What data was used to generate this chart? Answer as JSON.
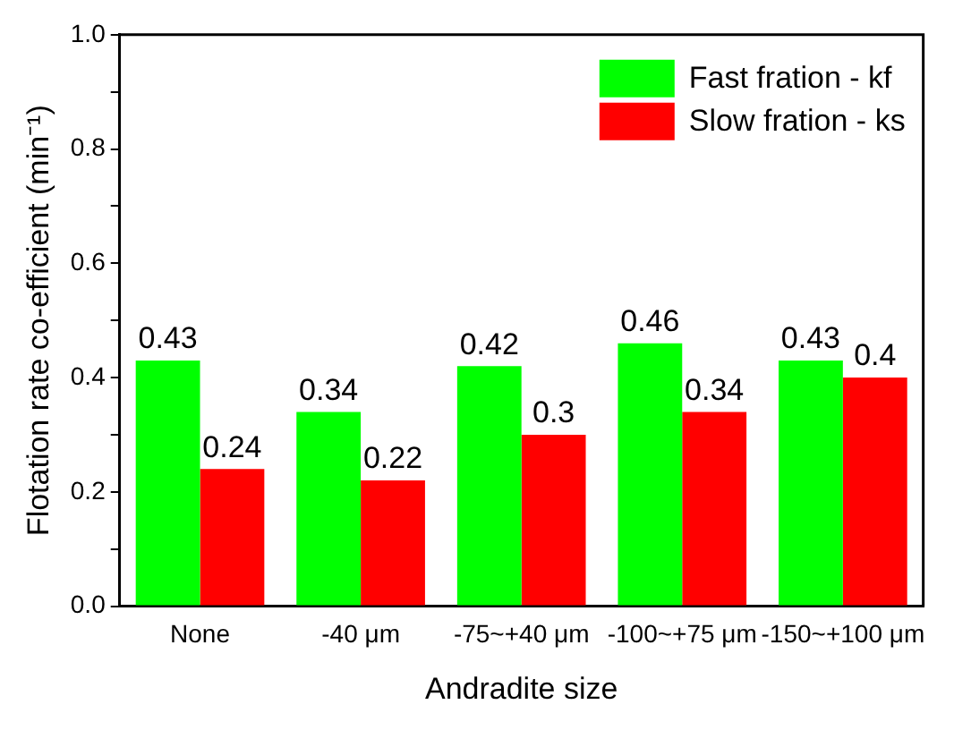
{
  "chart_data": {
    "type": "bar",
    "xlabel": "Andradite size",
    "ylabel": "Flotation rate co-efficient (min⁻¹)",
    "categories": [
      "None",
      "-40 μm",
      "-75~+40 μm",
      "-100~+75 μm",
      "-150~+100 μm"
    ],
    "series": [
      {
        "name": "Fast fration - kf",
        "color": "#00ff00",
        "values": [
          0.43,
          0.34,
          0.42,
          0.46,
          0.43
        ]
      },
      {
        "name": "Slow fration - ks",
        "color": "#ff0000",
        "values": [
          0.24,
          0.22,
          0.3,
          0.34,
          0.4
        ]
      }
    ],
    "ylim": [
      0,
      1
    ],
    "yticks": [
      "0.0",
      {
        "value": 0.1,
        "label": null
      },
      {
        "value": 0.2,
        "label": "0.2"
      },
      {
        "value": 0.3,
        "label": null
      },
      {
        "value": 0.4,
        "label": "0.4"
      },
      {
        "value": 0.5,
        "label": null
      },
      {
        "value": 0.6,
        "label": "0.6"
      },
      {
        "value": 0.7,
        "label": null
      },
      {
        "value": 0.8,
        "label": "0.8"
      },
      {
        "value": 0.9,
        "label": null
      },
      {
        "value": 1,
        "label": "1.0"
      }
    ],
    "grid": false,
    "legend": "top right",
    "data_labels": true
  }
}
